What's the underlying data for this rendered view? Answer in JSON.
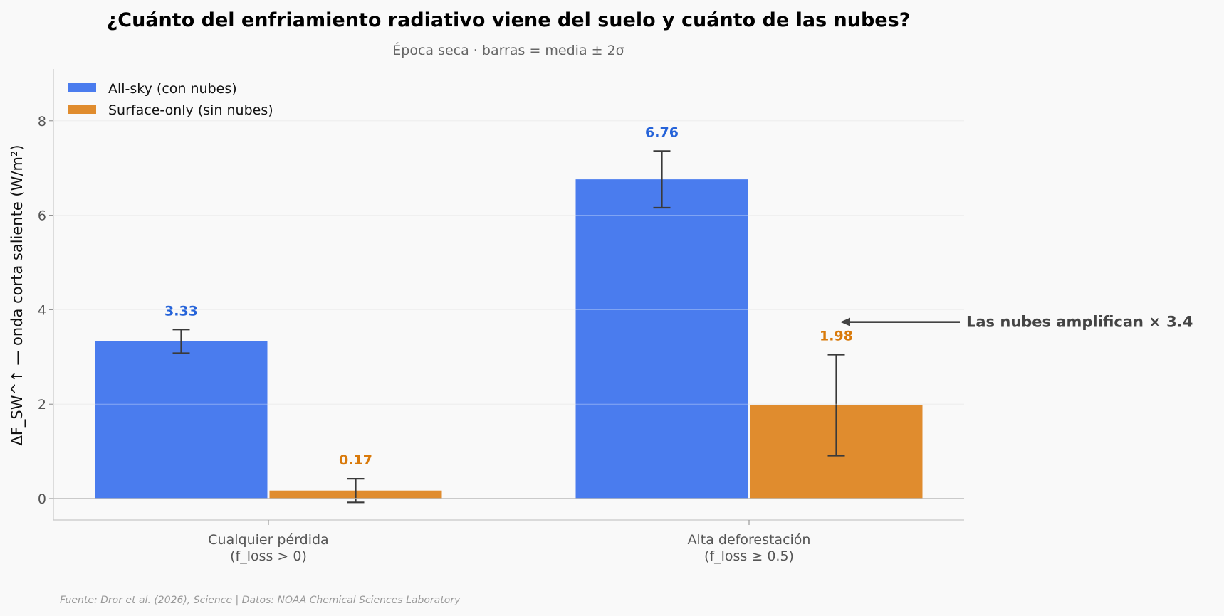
{
  "chart_data": {
    "type": "bar",
    "title": "¿Cuánto del enfriamiento radiativo viene del suelo y cuánto de las nubes?",
    "subtitle": "Época seca · barras = media ± 2σ",
    "ylabel": "ΔF_SW^↑ — onda corta saliente (W/m²)",
    "ylim": [
      -0.45,
      9.1
    ],
    "yticks": [
      0,
      2,
      4,
      6,
      8
    ],
    "grid": true,
    "legend_position": "top-left",
    "categories": [
      {
        "line1": "Cualquier pérdida",
        "line2": "(f_loss > 0)"
      },
      {
        "line1": "Alta deforestación",
        "line2": "(f_loss ≥ 0.5)"
      }
    ],
    "series": [
      {
        "name": "All-sky (con nubes)",
        "color": "#4a7cee",
        "label_color": "#2563d9",
        "values": [
          3.33,
          6.76
        ],
        "errors": [
          0.25,
          0.6
        ],
        "labels": [
          "3.33",
          "6.76"
        ]
      },
      {
        "name": "Surface-only (sin nubes)",
        "color": "#e08c2e",
        "label_color": "#d97a0b",
        "values": [
          0.17,
          1.98
        ],
        "errors": [
          0.25,
          1.07
        ],
        "labels": [
          "0.17",
          "1.98"
        ]
      }
    ],
    "annotation": {
      "text": "Las nubes amplifican × 3.4",
      "points_to_value": 3.74
    },
    "source": "Fuente: Dror et al. (2026), Science | Datos: NOAA Chemical Sciences Laboratory"
  }
}
